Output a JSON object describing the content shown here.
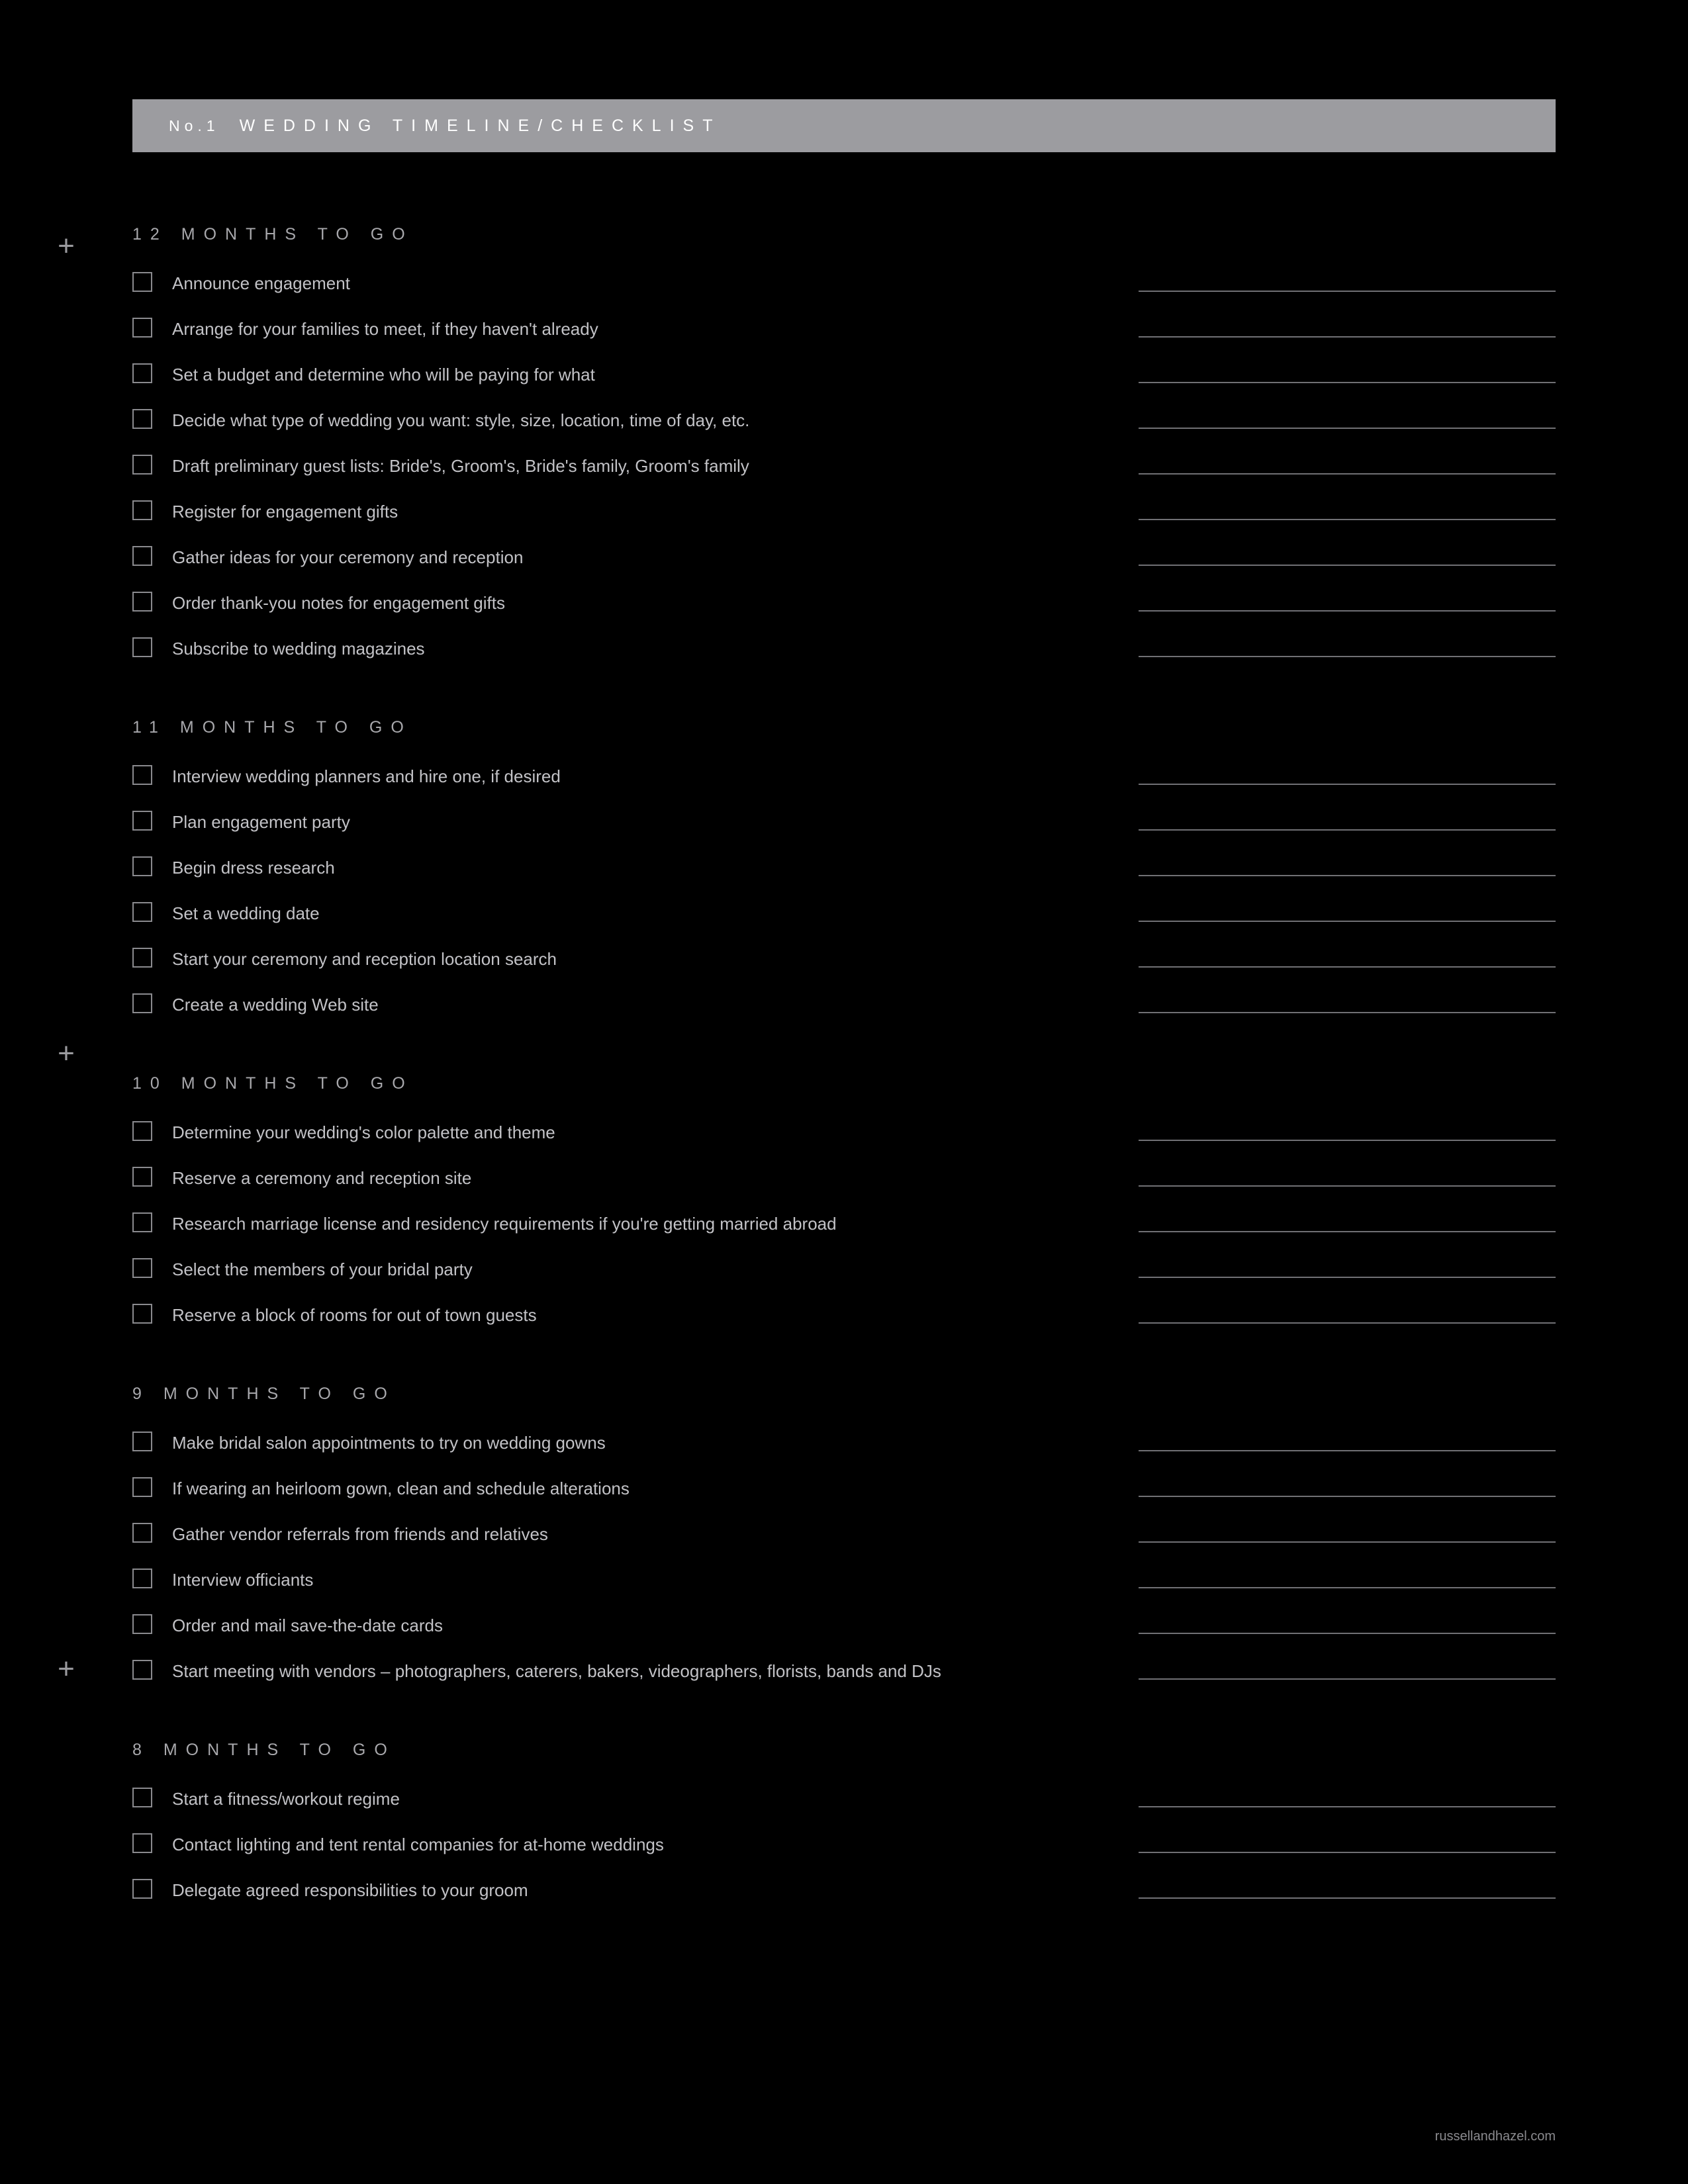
{
  "colors": {
    "page_bg": "#000000",
    "header_bg": "#9c9ca0",
    "header_text": "#ffffff",
    "section_title": "#a8a8ac",
    "item_text": "#c2c2c6",
    "checkbox_border": "#8a8a8e",
    "line": "#707074",
    "plus": "#9a9a9e",
    "footer": "#8a8a8e"
  },
  "typography": {
    "header_no_fontsize": 23,
    "header_title_fontsize": 25,
    "section_title_fontsize": 25,
    "item_fontsize": 26,
    "letter_spacing_wide": 13
  },
  "header": {
    "number": "No.1",
    "title": "WEDDING TIMELINE/CHECKLIST"
  },
  "plus_positions": [
    350,
    1570,
    2500
  ],
  "sections": [
    {
      "title": "12 MONTHS TO GO",
      "items": [
        "Announce engagement",
        "Arrange for your families to meet, if they haven't already",
        "Set a budget and determine who will be paying for what",
        "Decide what type of wedding you want: style, size, location, time of day, etc.",
        "Draft preliminary guest lists: Bride's, Groom's, Bride's family, Groom's family",
        "Register for engagement gifts",
        "Gather ideas for your ceremony and reception",
        "Order thank-you notes for engagement gifts",
        "Subscribe to wedding magazines"
      ]
    },
    {
      "title": "11 MONTHS TO GO",
      "items": [
        "Interview wedding planners and hire one, if desired",
        "Plan engagement party",
        "Begin dress research",
        "Set a wedding date",
        "Start your ceremony and reception location search",
        "Create a wedding Web site"
      ]
    },
    {
      "title": "10 MONTHS TO GO",
      "items": [
        "Determine your wedding's color palette and theme",
        "Reserve a ceremony and reception site",
        "Research marriage license and residency requirements if you're getting married abroad",
        "Select the members of your bridal party",
        "Reserve a block of rooms for out of town guests"
      ]
    },
    {
      "title": "9 MONTHS TO GO",
      "items": [
        "Make bridal salon appointments to try on wedding gowns",
        "If wearing an heirloom gown, clean and schedule alterations",
        "Gather vendor referrals from friends and relatives",
        "Interview officiants",
        "Order and mail save-the-date cards",
        "Start meeting with vendors – photographers, caterers, bakers, videographers, florists, bands and DJs"
      ]
    },
    {
      "title": "8 MONTHS TO GO",
      "items": [
        "Start a fitness/workout regime",
        "Contact lighting and tent rental companies for at-home weddings",
        "Delegate agreed responsibilities to your groom"
      ]
    }
  ],
  "footer": "russellandhazel.com"
}
